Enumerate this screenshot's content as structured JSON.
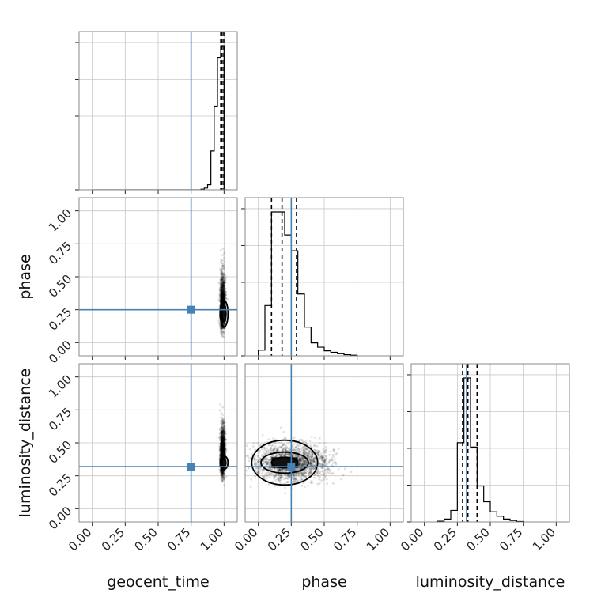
{
  "chart_data": {
    "type": "corner",
    "parameters": [
      "geocent_time",
      "phase",
      "luminosity_distance"
    ],
    "axis_range": [
      -0.1,
      1.1
    ],
    "tick_values": [
      0.0,
      0.25,
      0.5,
      0.75,
      1.0
    ],
    "tick_labels": [
      "0.00",
      "0.25",
      "0.50",
      "0.75",
      "1.00"
    ],
    "grid": true,
    "truths": {
      "geocent_time": 0.75,
      "phase": 0.25,
      "luminosity_distance": 0.32
    },
    "colors": {
      "truth": "#4682b4",
      "hist": "#000000",
      "samples": "#000000"
    },
    "marginals": [
      {
        "parameter": "geocent_time",
        "bin_edges": [
          0.0,
          0.025,
          0.05,
          0.075,
          0.1,
          0.125,
          0.15,
          0.175,
          0.2,
          0.225,
          0.25,
          0.275,
          0.3,
          0.325,
          0.35,
          0.375,
          0.4,
          0.425,
          0.45,
          0.475,
          0.5,
          0.525,
          0.55,
          0.575,
          0.6,
          0.625,
          0.65,
          0.675,
          0.7,
          0.725,
          0.75,
          0.775,
          0.8,
          0.825,
          0.85,
          0.875,
          0.9,
          0.925,
          0.95,
          0.975,
          1.0,
          1.025
        ],
        "counts": [
          0,
          0,
          0,
          0,
          0,
          0,
          0,
          0,
          0,
          0,
          0,
          0,
          0,
          0,
          0,
          0,
          0,
          0,
          0,
          0,
          0,
          0,
          0,
          0,
          0,
          0,
          0,
          0,
          0,
          0,
          0,
          0,
          0,
          0.4,
          1.2,
          3.5,
          27,
          58,
          92,
          100,
          0
        ],
        "quantiles": [
          0.975,
          0.985,
          0.998
        ]
      },
      {
        "parameter": "phase",
        "bin_edges": [
          0.0,
          0.05,
          0.1,
          0.15,
          0.2,
          0.25,
          0.3,
          0.35,
          0.4,
          0.45,
          0.5,
          0.55,
          0.6,
          0.65,
          0.7,
          0.75
        ],
        "counts": [
          4,
          35,
          100,
          100,
          84,
          73,
          43,
          20,
          9,
          6,
          3.5,
          2.5,
          1.5,
          0.8,
          0.4
        ],
        "quantiles": [
          0.1,
          0.18,
          0.29
        ]
      },
      {
        "parameter": "luminosity_distance",
        "bin_edges": [
          0.1,
          0.15,
          0.2,
          0.25,
          0.3,
          0.35,
          0.4,
          0.45,
          0.5,
          0.55,
          0.6,
          0.65,
          0.7,
          0.75
        ],
        "counts": [
          0.5,
          2,
          8,
          55,
          100,
          52,
          25,
          14,
          7,
          4,
          2,
          1,
          0.3
        ],
        "quantiles": [
          0.29,
          0.33,
          0.4
        ]
      }
    ],
    "pairs": [
      {
        "x": "geocent_time",
        "y": "phase",
        "center": [
          0.99,
          0.22
        ],
        "spread": [
          0.02,
          0.25
        ],
        "contour_center": [
          1.0,
          0.22
        ],
        "contour_radii": [
          [
            0.03,
            0.1
          ],
          [
            0.015,
            0.06
          ]
        ]
      },
      {
        "x": "geocent_time",
        "y": "luminosity_distance",
        "center": [
          0.99,
          0.36
        ],
        "spread": [
          0.02,
          0.22
        ],
        "contour_center": [
          1.0,
          0.35
        ],
        "contour_radii": [
          [
            0.03,
            0.05
          ],
          [
            0.015,
            0.025
          ]
        ]
      },
      {
        "x": "phase",
        "y": "luminosity_distance",
        "center": [
          0.25,
          0.35
        ],
        "spread": [
          0.25,
          0.14
        ],
        "contour_center": [
          0.2,
          0.35
        ],
        "contour_radii": [
          [
            0.25,
            0.17
          ],
          [
            0.18,
            0.08
          ],
          [
            0.1,
            0.04
          ]
        ]
      }
    ]
  }
}
